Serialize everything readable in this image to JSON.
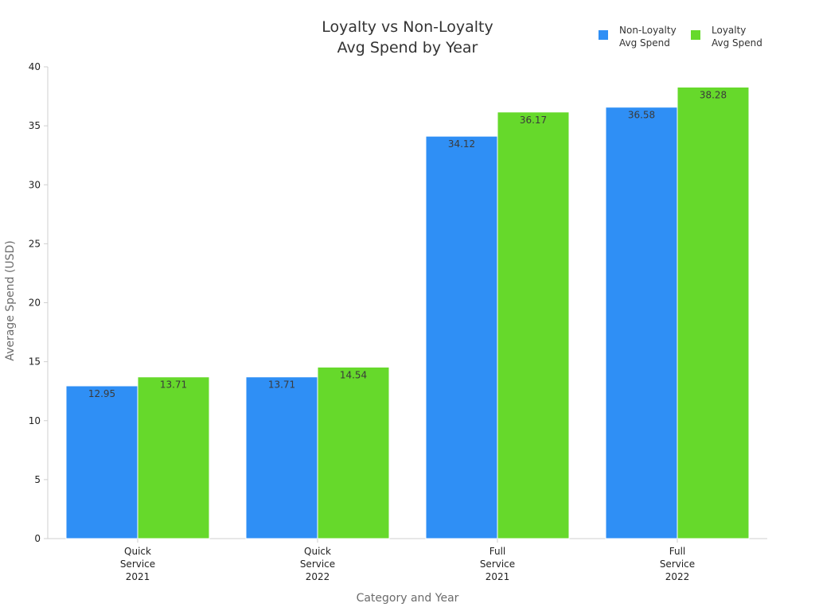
{
  "chart_data": {
    "type": "bar",
    "title_lines": [
      "Loyalty vs Non-Loyalty",
      "Avg Spend by Year"
    ],
    "categories": [
      [
        "Quick",
        "Service",
        "2021"
      ],
      [
        "Quick",
        "Service",
        "2022"
      ],
      [
        "Full",
        "Service",
        "2021"
      ],
      [
        "Full",
        "Service",
        "2022"
      ]
    ],
    "series": [
      {
        "name": "Non-Loyalty Avg Spend",
        "legend_lines": [
          "Non-Loyalty",
          "Avg Spend"
        ],
        "color": "#2f8ff5",
        "values": [
          12.95,
          13.71,
          34.12,
          36.58
        ]
      },
      {
        "name": "Loyalty Avg Spend",
        "legend_lines": [
          "Loyalty",
          "Avg Spend"
        ],
        "color": "#66d92b",
        "values": [
          13.71,
          14.54,
          36.17,
          38.28
        ]
      }
    ],
    "data_labels": [
      [
        "12.95",
        "13.71",
        "34.12",
        "36.58"
      ],
      [
        "13.71",
        "14.54",
        "36.17",
        "38.28"
      ]
    ],
    "xlabel": "Category and Year",
    "ylabel": "Average Spend (USD)",
    "ylim": [
      0,
      40
    ],
    "yticks": [
      0,
      5,
      10,
      15,
      20,
      25,
      30,
      35,
      40
    ],
    "ytick_labels": [
      "0",
      "5",
      "10",
      "15",
      "20",
      "25",
      "30",
      "35",
      "40"
    ],
    "legend_position": "top-right",
    "grid": false
  }
}
